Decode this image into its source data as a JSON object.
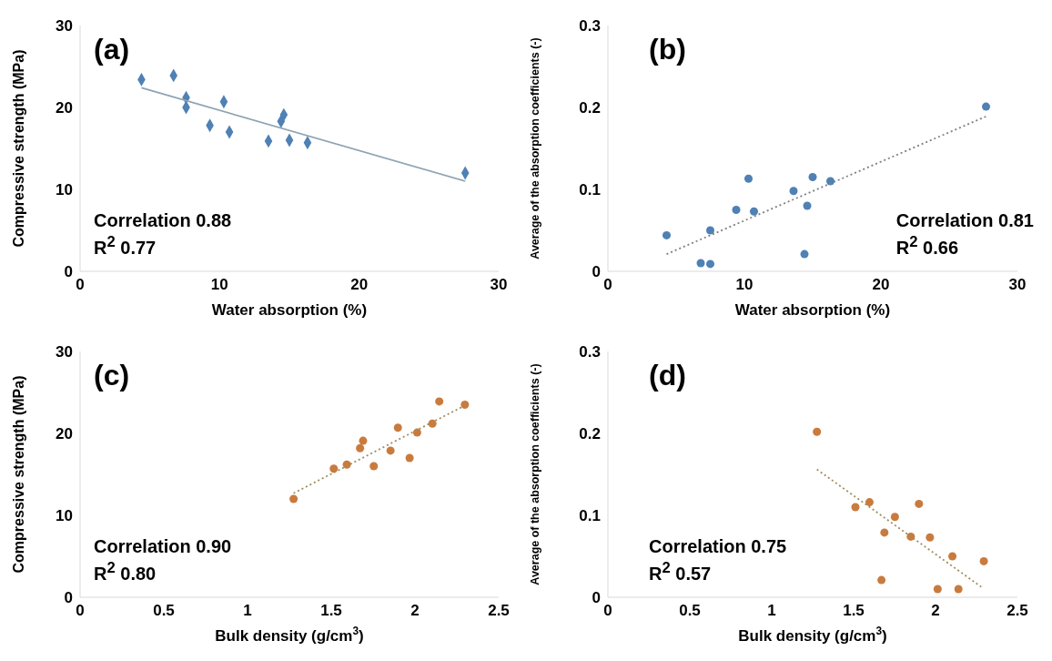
{
  "chart_data": [
    {
      "type": "scatter",
      "title": "(a)",
      "xlabel": "Water absorption (%)",
      "ylabel": "Compressive strength (MPa)",
      "xlim": [
        0,
        30
      ],
      "xticks": [
        0,
        10,
        20,
        30
      ],
      "ylim": [
        0,
        30
      ],
      "yticks": [
        0,
        10,
        20,
        30
      ],
      "annotations": [
        "Correlation 0.88",
        "R$^{2}$ 0.77"
      ],
      "series": [
        {
          "marker": "diamond",
          "color": "#4f81b4",
          "x": [
            4.4,
            6.7,
            7.6,
            7.6,
            9.3,
            10.3,
            10.7,
            13.5,
            14.4,
            14.6,
            15.0,
            16.3,
            27.6
          ],
          "values": [
            23.4,
            23.9,
            21.2,
            20.0,
            17.8,
            20.7,
            17.0,
            15.9,
            18.3,
            19.1,
            16.0,
            15.7,
            12.0
          ]
        },
        {
          "type": "line",
          "color": "#8ea3b3",
          "line_style": "solid",
          "x": [
            4.4,
            27.6
          ],
          "values": [
            22.4,
            11.0
          ]
        }
      ]
    },
    {
      "type": "scatter",
      "title": "(b)",
      "xlabel": "Water absorption (%)",
      "ylabel": "Average of the absorption coefficients (-)",
      "xlim": [
        0,
        30
      ],
      "xticks": [
        0,
        10,
        20,
        30
      ],
      "ylim": [
        0,
        0.3
      ],
      "yticks": [
        0,
        0.1,
        0.2,
        0.3
      ],
      "annotations": [
        "Correlation 0.81",
        "R$^{2}$ 0.66"
      ],
      "series": [
        {
          "marker": "circle",
          "color": "#4f81b4",
          "x": [
            4.3,
            6.8,
            7.5,
            7.5,
            9.4,
            10.3,
            10.7,
            13.6,
            14.4,
            14.6,
            15.0,
            16.3,
            27.7
          ],
          "values": [
            0.044,
            0.01,
            0.05,
            0.009,
            0.075,
            0.113,
            0.073,
            0.098,
            0.021,
            0.08,
            0.115,
            0.11,
            0.201
          ]
        },
        {
          "type": "line",
          "color": "#7f7f7f",
          "line_style": "dotted",
          "x": [
            4.3,
            27.7
          ],
          "values": [
            0.021,
            0.189
          ]
        }
      ]
    },
    {
      "type": "scatter",
      "title": "(c)",
      "xlabel": "Bulk density (g/cm$^{3}$)",
      "ylabel": "Compressive strength (MPa)",
      "xlim": [
        0,
        2.5
      ],
      "xticks": [
        0,
        0.5,
        1,
        1.5,
        2,
        2.5
      ],
      "ylim": [
        0,
        30
      ],
      "yticks": [
        0,
        10,
        20,
        30
      ],
      "annotations": [
        "Correlation 0.90",
        "R$^{2}$ 0.80"
      ],
      "series": [
        {
          "marker": "circle",
          "color": "#c97b3e",
          "x": [
            1.275,
            1.515,
            1.593,
            1.672,
            1.69,
            1.754,
            1.854,
            1.898,
            1.968,
            2.013,
            2.104,
            2.145,
            2.298
          ],
          "values": [
            12.0,
            15.7,
            16.2,
            18.2,
            19.1,
            16.0,
            17.9,
            20.7,
            17.0,
            20.1,
            21.2,
            23.9,
            23.5
          ]
        },
        {
          "type": "line",
          "color": "#a08c5a",
          "line_style": "dotted",
          "x": [
            1.275,
            2.298
          ],
          "values": [
            12.7,
            23.4
          ]
        }
      ]
    },
    {
      "type": "scatter",
      "title": "(d)",
      "xlabel": "Bulk density (g/cm$^{3}$)",
      "ylabel": "Average of the absorption coefficients (-)",
      "xlim": [
        0,
        2.5
      ],
      "xticks": [
        0,
        0.5,
        1,
        1.5,
        2,
        2.5
      ],
      "ylim": [
        0,
        0.3
      ],
      "yticks": [
        0,
        0.1,
        0.2,
        0.3
      ],
      "annotations": [
        "Correlation 0.75",
        "R$^{2}$ 0.57"
      ],
      "series": [
        {
          "marker": "circle",
          "color": "#c97b3e",
          "x": [
            1.276,
            1.511,
            1.597,
            1.688,
            1.67,
            1.752,
            1.849,
            1.899,
            1.966,
            2.013,
            2.103,
            2.14,
            2.295
          ],
          "values": [
            0.202,
            0.11,
            0.116,
            0.079,
            0.021,
            0.098,
            0.074,
            0.114,
            0.073,
            0.01,
            0.05,
            0.01,
            0.044
          ]
        },
        {
          "type": "line",
          "color": "#a08c5a",
          "line_style": "dotted",
          "x": [
            1.276,
            2.284
          ],
          "values": [
            0.156,
            0.012
          ]
        }
      ]
    }
  ]
}
